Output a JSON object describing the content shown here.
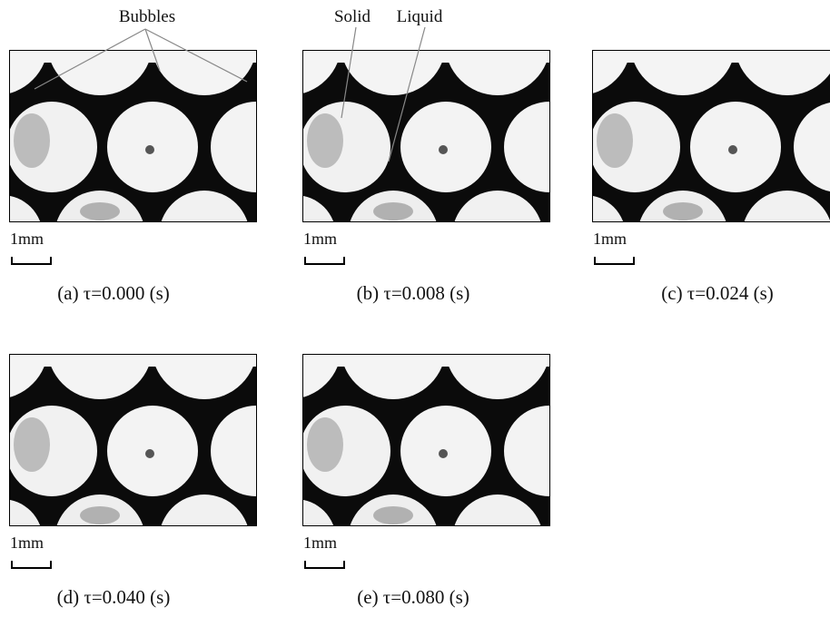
{
  "annotations": {
    "bubbles": "Bubbles",
    "solid": "Solid",
    "liquid": "Liquid"
  },
  "panels": [
    {
      "scale": "1mm",
      "caption": "(a) τ=0.000 (s)"
    },
    {
      "scale": "1mm",
      "caption": "(b) τ=0.008 (s)"
    },
    {
      "scale": "1mm",
      "caption": "(c) τ=0.024 (s)"
    },
    {
      "scale": "1mm",
      "caption": "(d) τ=0.040 (s)"
    },
    {
      "scale": "1mm",
      "caption": "(e) τ=0.080 (s)"
    }
  ]
}
